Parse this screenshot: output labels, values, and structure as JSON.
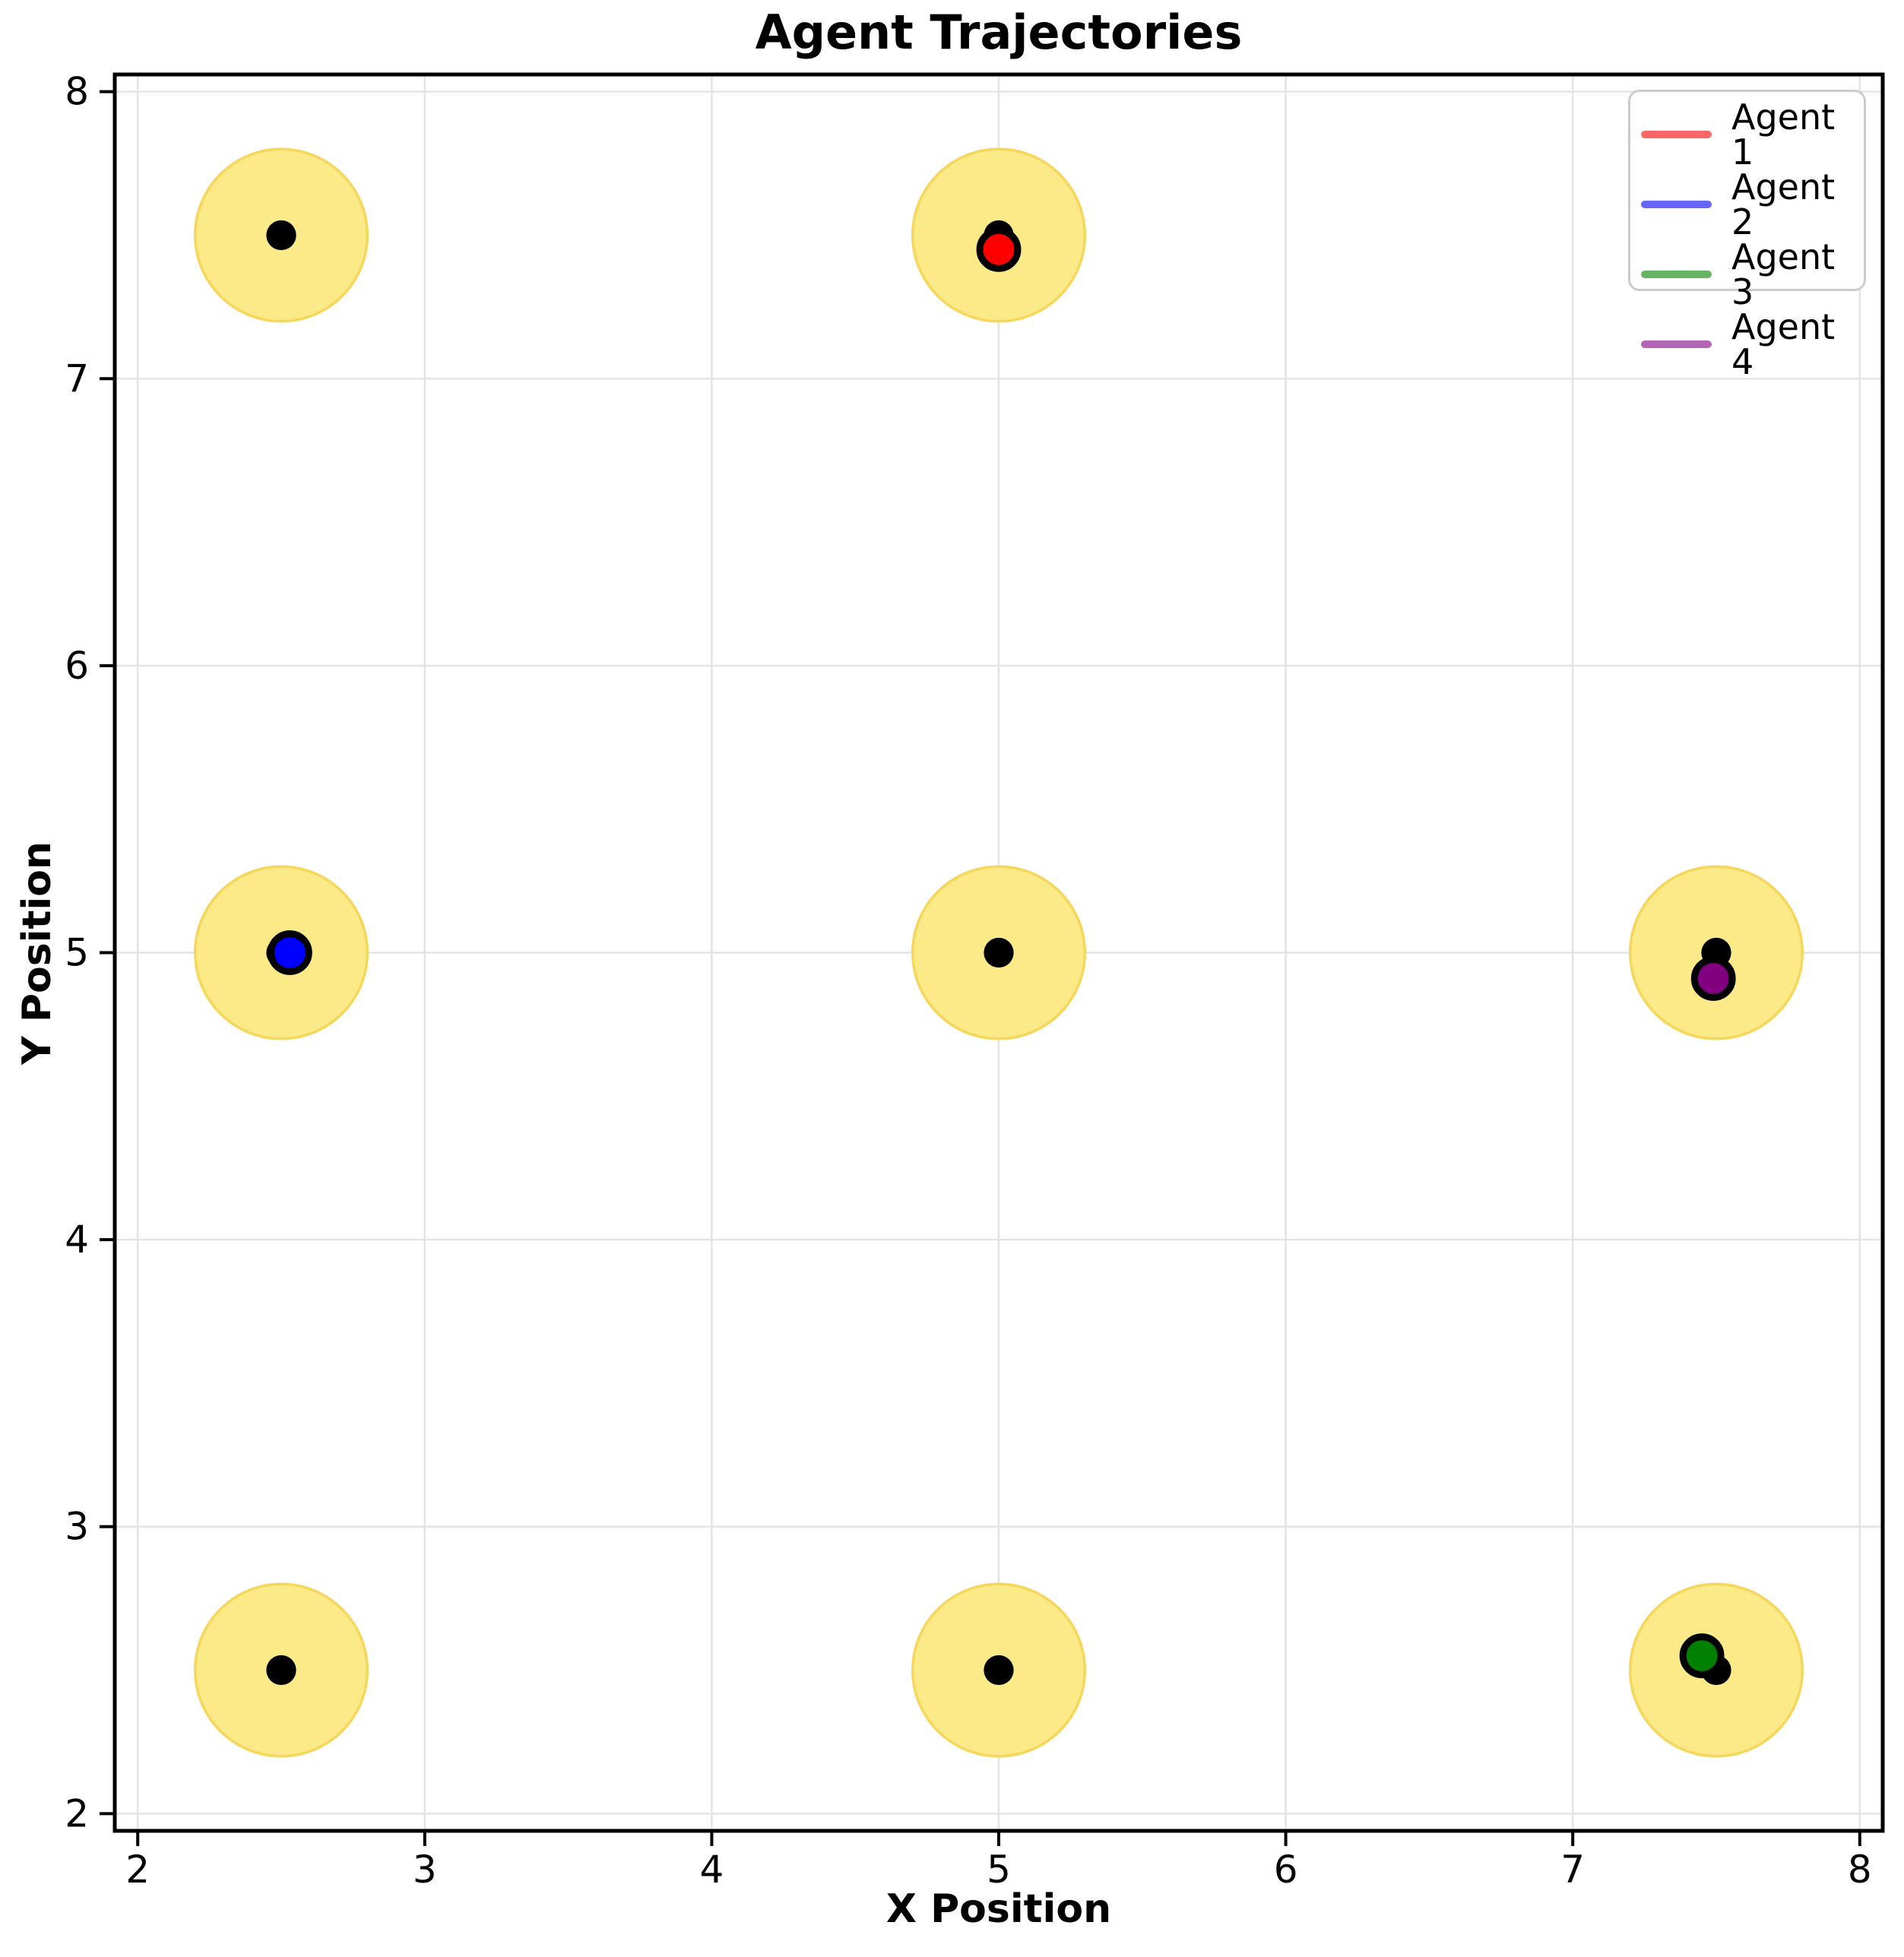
{
  "chart_data": {
    "type": "scatter",
    "title": "Agent Trajectories",
    "xlabel": "X Position",
    "ylabel": "Y Position",
    "xlim": [
      1.92,
      8.08
    ],
    "ylim": [
      1.94,
      8.06
    ],
    "xticks": [
      2,
      3,
      4,
      5,
      6,
      7,
      8
    ],
    "yticks": [
      2,
      3,
      4,
      5,
      6,
      7,
      8
    ],
    "grid": true,
    "grid_color": "#e4e4e4",
    "plot_bg": "#ffffff",
    "spine_color": "#000000",
    "legend_position": "upper right",
    "landmarks": {
      "positions": [
        [
          2.5,
          7.5
        ],
        [
          5.0,
          7.5
        ],
        [
          2.5,
          5.0
        ],
        [
          5.0,
          5.0
        ],
        [
          7.5,
          5.0
        ],
        [
          2.5,
          2.5
        ],
        [
          5.0,
          2.5
        ],
        [
          7.5,
          2.5
        ]
      ],
      "radius": 0.3,
      "fill_color": "#fce987",
      "edge_color": "#f6d75c",
      "center_dot_color": "#000000",
      "center_dot_radius": 0.052
    },
    "agent_marker_radius": 0.066,
    "agent_marker_edge_color": "#000000",
    "agents": [
      {
        "label": "Agent 1",
        "color": "#ff0000",
        "legend_color": "#ff6666",
        "position": [
          5.0,
          7.45
        ]
      },
      {
        "label": "Agent 2",
        "color": "#0000ff",
        "legend_color": "#6666ff",
        "position": [
          2.53,
          5.0
        ]
      },
      {
        "label": "Agent 3",
        "color": "#008000",
        "legend_color": "#66b366",
        "position": [
          7.45,
          2.55
        ]
      },
      {
        "label": "Agent 4",
        "color": "#800080",
        "legend_color": "#b366b3",
        "position": [
          7.49,
          4.91
        ]
      }
    ]
  }
}
